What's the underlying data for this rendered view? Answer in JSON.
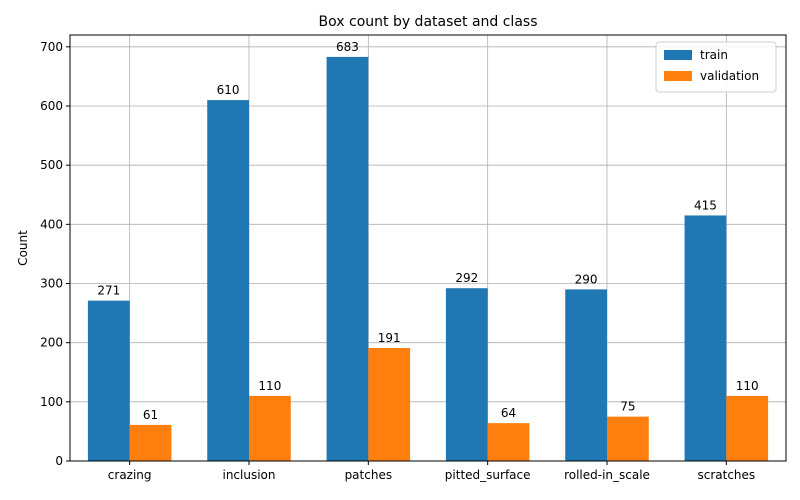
{
  "chart_data": {
    "type": "bar",
    "title": "Box count by dataset and class",
    "xlabel": "",
    "ylabel": "Count",
    "categories": [
      "crazing",
      "inclusion",
      "patches",
      "pitted_surface",
      "rolled-in_scale",
      "scratches"
    ],
    "series": [
      {
        "name": "train",
        "values": [
          271,
          610,
          683,
          292,
          290,
          415
        ],
        "color": "#1f77b4"
      },
      {
        "name": "validation",
        "values": [
          61,
          110,
          191,
          64,
          75,
          110
        ],
        "color": "#ff7f0e"
      }
    ],
    "ylim": [
      0,
      720
    ],
    "yticks": [
      0,
      100,
      200,
      300,
      400,
      500,
      600,
      700
    ],
    "grid": true,
    "legend_position": "top-right"
  }
}
